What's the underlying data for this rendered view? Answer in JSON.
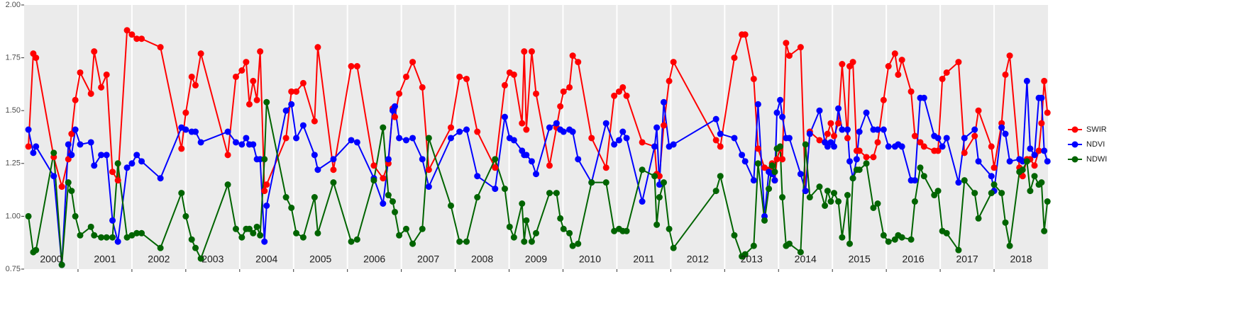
{
  "chart_data": {
    "type": "line",
    "x": [
      2000.08,
      2000.17,
      2000.22,
      2000.55,
      2000.7,
      2000.82,
      2000.88,
      2000.95,
      2001.04,
      2001.24,
      2001.3,
      2001.43,
      2001.53,
      2001.64,
      2001.74,
      2001.91,
      2002.0,
      2002.09,
      2002.18,
      2002.53,
      2002.92,
      2003.0,
      2003.11,
      2003.18,
      2003.28,
      2003.78,
      2003.93,
      2004.04,
      2004.12,
      2004.18,
      2004.25,
      2004.32,
      2004.38,
      2004.46,
      2004.5,
      2004.86,
      2004.96,
      2005.05,
      2005.18,
      2005.39,
      2005.45,
      2005.74,
      2006.07,
      2006.18,
      2006.49,
      2006.66,
      2006.76,
      2006.84,
      2006.88,
      2006.96,
      2007.09,
      2007.21,
      2007.39,
      2007.51,
      2007.92,
      2008.08,
      2008.21,
      2008.41,
      2008.74,
      2008.92,
      2009.01,
      2009.09,
      2009.24,
      2009.28,
      2009.32,
      2009.42,
      2009.5,
      2009.75,
      2009.88,
      2009.95,
      2010.01,
      2010.12,
      2010.18,
      2010.28,
      2010.53,
      2010.8,
      2010.95,
      2011.04,
      2011.11,
      2011.18,
      2011.47,
      2011.7,
      2011.74,
      2011.79,
      2011.87,
      2011.97,
      2012.05,
      2012.84,
      2012.92,
      2013.18,
      2013.32,
      2013.38,
      2013.54,
      2013.62,
      2013.74,
      2013.82,
      2013.88,
      2013.93,
      2013.97,
      2014.03,
      2014.07,
      2014.14,
      2014.2,
      2014.41,
      2014.5,
      2014.58,
      2014.76,
      2014.86,
      2014.91,
      2014.97,
      2015.03,
      2015.11,
      2015.18,
      2015.28,
      2015.32,
      2015.38,
      2015.45,
      2015.5,
      2015.63,
      2015.76,
      2015.84,
      2015.95,
      2016.04,
      2016.16,
      2016.22,
      2016.29,
      2016.46,
      2016.53,
      2016.63,
      2016.7,
      2016.89,
      2016.96,
      2017.04,
      2017.12,
      2017.34,
      2017.45,
      2017.64,
      2017.71,
      2017.95,
      2018.0,
      2018.14,
      2018.21,
      2018.29,
      2018.47,
      2018.53,
      2018.61,
      2018.67,
      2018.75,
      2018.83,
      2018.88,
      2018.93,
      2018.99
    ],
    "series": [
      {
        "name": "SWIR",
        "color": "#ff0000",
        "values": [
          1.33,
          1.77,
          1.75,
          1.28,
          1.14,
          1.27,
          1.39,
          1.55,
          1.68,
          1.58,
          1.78,
          1.61,
          1.67,
          1.21,
          1.17,
          1.88,
          1.86,
          1.84,
          1.84,
          1.8,
          1.32,
          1.49,
          1.66,
          1.62,
          1.77,
          1.29,
          1.66,
          1.69,
          1.73,
          1.53,
          1.64,
          1.55,
          1.78,
          1.12,
          1.15,
          1.37,
          1.59,
          1.59,
          1.63,
          1.45,
          1.8,
          1.22,
          1.71,
          1.71,
          1.24,
          1.18,
          1.25,
          1.51,
          1.47,
          1.58,
          1.66,
          1.73,
          1.61,
          1.22,
          1.42,
          1.66,
          1.65,
          1.4,
          1.23,
          1.62,
          1.68,
          1.67,
          1.44,
          1.78,
          1.41,
          1.78,
          1.58,
          1.24,
          1.42,
          1.52,
          1.59,
          1.61,
          1.76,
          1.73,
          1.37,
          1.23,
          1.57,
          1.59,
          1.61,
          1.57,
          1.35,
          1.33,
          1.2,
          1.19,
          1.43,
          1.64,
          1.73,
          1.36,
          1.33,
          1.75,
          1.86,
          1.86,
          1.65,
          1.32,
          1.23,
          1.22,
          1.25,
          1.17,
          1.27,
          1.32,
          1.27,
          1.82,
          1.76,
          1.8,
          1.12,
          1.4,
          1.36,
          1.35,
          1.39,
          1.44,
          1.38,
          1.44,
          1.72,
          1.37,
          1.71,
          1.73,
          1.31,
          1.31,
          1.28,
          1.28,
          1.35,
          1.55,
          1.71,
          1.77,
          1.67,
          1.74,
          1.59,
          1.38,
          1.35,
          1.33,
          1.31,
          1.31,
          1.65,
          1.68,
          1.73,
          1.3,
          1.38,
          1.5,
          1.33,
          1.23,
          1.44,
          1.67,
          1.76,
          1.23,
          1.19,
          1.27,
          1.27,
          1.24,
          1.31,
          1.44,
          1.64,
          1.49
        ]
      },
      {
        "name": "NDVI",
        "color": "#0000ff",
        "values": [
          1.41,
          1.3,
          1.33,
          1.19,
          0.77,
          1.34,
          1.29,
          1.41,
          1.34,
          1.35,
          1.24,
          1.29,
          1.29,
          0.98,
          0.88,
          1.23,
          1.25,
          1.29,
          1.26,
          1.18,
          1.42,
          1.41,
          1.4,
          1.4,
          1.35,
          1.4,
          1.35,
          1.34,
          1.37,
          1.34,
          1.34,
          1.27,
          1.27,
          0.88,
          1.05,
          1.5,
          1.53,
          1.37,
          1.43,
          1.29,
          1.22,
          1.27,
          1.36,
          1.35,
          1.18,
          1.06,
          1.27,
          1.5,
          1.52,
          1.37,
          1.36,
          1.37,
          1.27,
          1.14,
          1.37,
          1.4,
          1.41,
          1.19,
          1.13,
          1.47,
          1.37,
          1.36,
          1.31,
          1.29,
          1.29,
          1.26,
          1.2,
          1.42,
          1.44,
          1.41,
          1.4,
          1.41,
          1.4,
          1.27,
          1.16,
          1.44,
          1.34,
          1.36,
          1.4,
          1.37,
          1.07,
          1.33,
          1.42,
          1.15,
          1.54,
          1.33,
          1.34,
          1.46,
          1.39,
          1.37,
          1.29,
          1.26,
          1.17,
          1.53,
          1.0,
          1.21,
          1.2,
          1.17,
          1.49,
          1.55,
          1.47,
          1.37,
          1.37,
          1.2,
          1.12,
          1.39,
          1.5,
          1.35,
          1.33,
          1.35,
          1.33,
          1.51,
          1.41,
          1.41,
          1.26,
          1.18,
          1.27,
          1.4,
          1.49,
          1.41,
          1.41,
          1.41,
          1.33,
          1.33,
          1.34,
          1.33,
          1.17,
          1.17,
          1.56,
          1.56,
          1.38,
          1.37,
          1.33,
          1.37,
          1.16,
          1.37,
          1.41,
          1.26,
          1.19,
          1.12,
          1.42,
          1.39,
          1.26,
          1.27,
          1.26,
          1.64,
          1.32,
          1.29,
          1.56,
          1.56,
          1.31,
          1.26
        ]
      },
      {
        "name": "NDWI",
        "color": "#006400",
        "values": [
          1.0,
          0.83,
          0.84,
          1.3,
          0.77,
          1.16,
          1.12,
          1.0,
          0.91,
          0.95,
          0.91,
          0.9,
          0.9,
          0.9,
          1.25,
          0.9,
          0.91,
          0.92,
          0.92,
          0.85,
          1.11,
          1.0,
          0.89,
          0.85,
          0.8,
          1.15,
          0.94,
          0.9,
          0.94,
          0.94,
          0.92,
          0.95,
          0.91,
          1.27,
          1.54,
          1.09,
          1.04,
          0.92,
          0.9,
          1.09,
          0.92,
          1.16,
          0.88,
          0.89,
          1.17,
          1.42,
          1.1,
          1.07,
          1.02,
          0.91,
          0.94,
          0.87,
          0.94,
          1.37,
          1.05,
          0.88,
          0.88,
          1.09,
          1.27,
          1.13,
          0.95,
          0.9,
          1.06,
          0.88,
          0.98,
          0.88,
          0.92,
          1.11,
          1.11,
          0.99,
          0.94,
          0.92,
          0.86,
          0.87,
          1.16,
          1.16,
          0.93,
          0.94,
          0.93,
          0.93,
          1.22,
          1.19,
          0.96,
          1.09,
          1.16,
          0.94,
          0.85,
          1.12,
          1.19,
          0.91,
          0.81,
          0.82,
          0.86,
          1.25,
          0.98,
          1.13,
          1.24,
          1.21,
          1.32,
          1.33,
          1.09,
          0.86,
          0.87,
          0.83,
          1.34,
          1.09,
          1.14,
          1.05,
          1.12,
          1.07,
          1.11,
          1.07,
          0.9,
          1.1,
          0.87,
          1.18,
          1.22,
          1.22,
          1.25,
          1.04,
          1.06,
          0.91,
          0.88,
          0.89,
          0.91,
          0.9,
          0.89,
          1.07,
          1.23,
          1.19,
          1.1,
          1.12,
          0.93,
          0.92,
          0.84,
          1.17,
          1.11,
          0.99,
          1.11,
          1.15,
          1.11,
          0.97,
          0.86,
          1.21,
          1.22,
          1.26,
          1.12,
          1.19,
          1.15,
          1.16,
          0.93,
          1.07
        ]
      }
    ],
    "xlim": [
      2000,
      2019
    ],
    "xticks": [
      2001,
      2002,
      2003,
      2004,
      2005,
      2006,
      2007,
      2008,
      2009,
      2010,
      2011,
      2012,
      2013,
      2014,
      2015,
      2016,
      2017,
      2018
    ],
    "year_labels": [
      "2000",
      "2001",
      "2002",
      "2003",
      "2004",
      "2005",
      "2006",
      "2007",
      "2008",
      "2009",
      "2010",
      "2011",
      "2012",
      "2013",
      "2014",
      "2015",
      "2016",
      "2017",
      "2018"
    ],
    "ylim": [
      0.75,
      2.0
    ],
    "yticks": [
      {
        "value": 0.75,
        "label": "0.75"
      },
      {
        "value": 1.0,
        "label": "1.00"
      },
      {
        "value": 1.25,
        "label": "1.25"
      },
      {
        "value": 1.5,
        "label": "1.50"
      },
      {
        "value": 1.75,
        "label": "1.75"
      },
      {
        "value": 2.0,
        "label": "2.00"
      }
    ],
    "grid": "x",
    "legend": "right"
  }
}
